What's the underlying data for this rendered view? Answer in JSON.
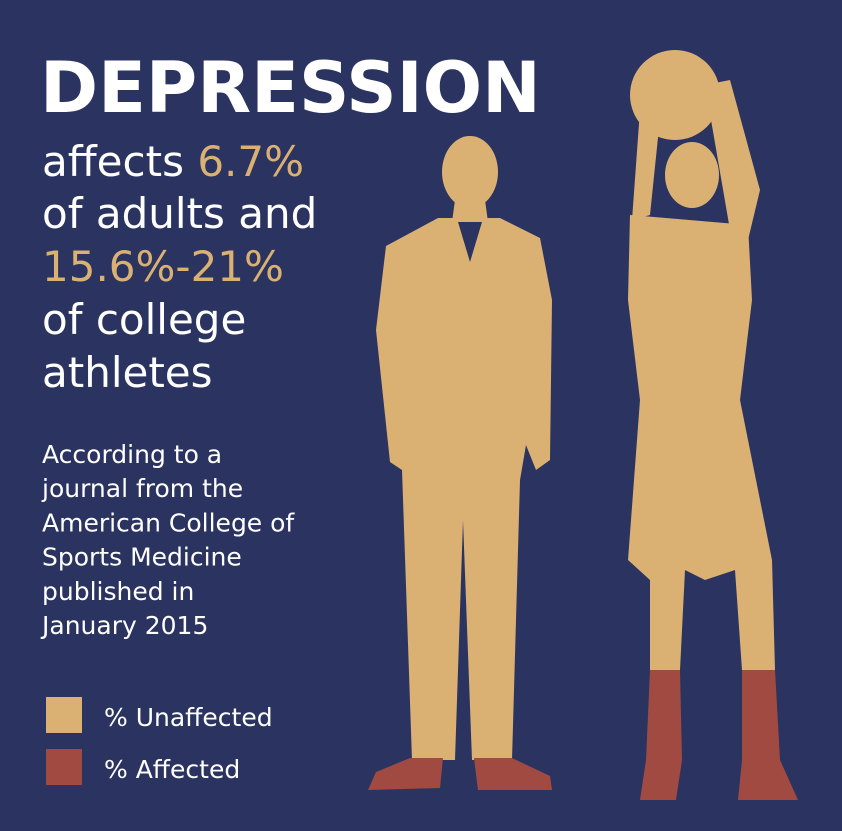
{
  "header": {
    "title": "DEPRESSION"
  },
  "headline": {
    "lines": [
      {
        "text": "affects ",
        "highlight": "6.7%"
      },
      {
        "text": "of adults and"
      },
      {
        "highlight": "15.6%-21%"
      },
      {
        "text": "of college"
      },
      {
        "text": "athletes"
      }
    ]
  },
  "source": {
    "lines": [
      "According to a",
      "journal from the",
      "American College of",
      "Sports Medicine",
      "published in",
      "January 2015"
    ]
  },
  "legend": {
    "items": [
      "% Unaffected",
      "% Affected"
    ]
  }
}
